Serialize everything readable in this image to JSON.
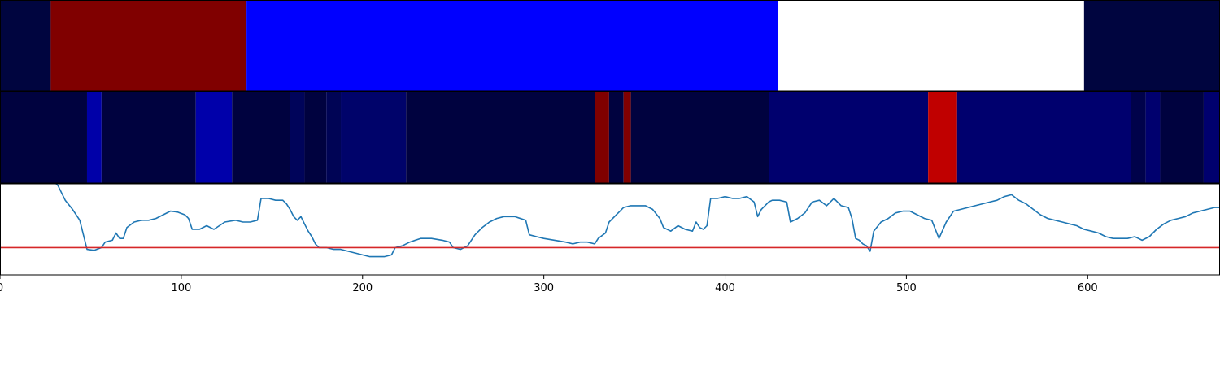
{
  "chart_data": [
    {
      "type": "heatmap",
      "panel": "top-band",
      "xlim": [
        0,
        673
      ],
      "segments": [
        {
          "start": 0,
          "end": 28,
          "color": "#00053f"
        },
        {
          "start": 28,
          "end": 136,
          "color": "#800000"
        },
        {
          "start": 136,
          "end": 429,
          "color": "#0000ff"
        },
        {
          "start": 429,
          "end": 598,
          "color": "#ffffff"
        },
        {
          "start": 598,
          "end": 673,
          "color": "#00053f"
        }
      ]
    },
    {
      "type": "heatmap",
      "panel": "middle-band",
      "xlim": [
        0,
        673
      ],
      "segments": [
        {
          "start": 0,
          "end": 48,
          "color": "#00023f"
        },
        {
          "start": 48,
          "end": 56,
          "color": "#0000a8"
        },
        {
          "start": 56,
          "end": 108,
          "color": "#00023f"
        },
        {
          "start": 108,
          "end": 128,
          "color": "#0000aa"
        },
        {
          "start": 128,
          "end": 160,
          "color": "#00023f"
        },
        {
          "start": 160,
          "end": 168,
          "color": "#00045a"
        },
        {
          "start": 168,
          "end": 180,
          "color": "#00023f"
        },
        {
          "start": 180,
          "end": 188,
          "color": "#000455"
        },
        {
          "start": 188,
          "end": 224,
          "color": "#00036a"
        },
        {
          "start": 224,
          "end": 328,
          "color": "#00023f"
        },
        {
          "start": 328,
          "end": 336,
          "color": "#800000"
        },
        {
          "start": 336,
          "end": 344,
          "color": "#00023f"
        },
        {
          "start": 344,
          "end": 348,
          "color": "#800000"
        },
        {
          "start": 348,
          "end": 424,
          "color": "#00023f"
        },
        {
          "start": 424,
          "end": 512,
          "color": "#00006e"
        },
        {
          "start": 512,
          "end": 528,
          "color": "#c00000"
        },
        {
          "start": 528,
          "end": 624,
          "color": "#00006e"
        },
        {
          "start": 624,
          "end": 632,
          "color": "#00024a"
        },
        {
          "start": 632,
          "end": 640,
          "color": "#00006e"
        },
        {
          "start": 640,
          "end": 664,
          "color": "#00023f"
        },
        {
          "start": 664,
          "end": 673,
          "color": "#00006e"
        }
      ]
    },
    {
      "type": "line",
      "panel": "bottom-line",
      "xlim": [
        0,
        673
      ],
      "ylim": [
        0,
        1
      ],
      "xticks": [
        0,
        100,
        200,
        300,
        400,
        500,
        600
      ],
      "series": [
        {
          "color": "#1f77b4",
          "points": [
            [
              0,
              1.02
            ],
            [
              30,
              1.02
            ],
            [
              32,
              0.98
            ],
            [
              36,
              0.82
            ],
            [
              40,
              0.72
            ],
            [
              44,
              0.6
            ],
            [
              48,
              0.28
            ],
            [
              52,
              0.27
            ],
            [
              56,
              0.3
            ],
            [
              58,
              0.36
            ],
            [
              62,
              0.38
            ],
            [
              64,
              0.46
            ],
            [
              66,
              0.4
            ],
            [
              68,
              0.4
            ],
            [
              70,
              0.52
            ],
            [
              74,
              0.58
            ],
            [
              78,
              0.6
            ],
            [
              82,
              0.6
            ],
            [
              86,
              0.62
            ],
            [
              90,
              0.66
            ],
            [
              94,
              0.7
            ],
            [
              98,
              0.69
            ],
            [
              102,
              0.66
            ],
            [
              104,
              0.62
            ],
            [
              106,
              0.5
            ],
            [
              110,
              0.5
            ],
            [
              114,
              0.54
            ],
            [
              118,
              0.5
            ],
            [
              124,
              0.58
            ],
            [
              130,
              0.6
            ],
            [
              134,
              0.58
            ],
            [
              138,
              0.58
            ],
            [
              142,
              0.6
            ],
            [
              144,
              0.84
            ],
            [
              148,
              0.84
            ],
            [
              152,
              0.82
            ],
            [
              156,
              0.82
            ],
            [
              158,
              0.78
            ],
            [
              160,
              0.72
            ],
            [
              162,
              0.64
            ],
            [
              164,
              0.6
            ],
            [
              166,
              0.64
            ],
            [
              168,
              0.56
            ],
            [
              170,
              0.48
            ],
            [
              172,
              0.42
            ],
            [
              174,
              0.34
            ],
            [
              176,
              0.3
            ],
            [
              180,
              0.3
            ],
            [
              184,
              0.28
            ],
            [
              188,
              0.28
            ],
            [
              192,
              0.26
            ],
            [
              196,
              0.24
            ],
            [
              200,
              0.22
            ],
            [
              204,
              0.2
            ],
            [
              208,
              0.2
            ],
            [
              212,
              0.2
            ],
            [
              216,
              0.22
            ],
            [
              218,
              0.3
            ],
            [
              222,
              0.32
            ],
            [
              226,
              0.36
            ],
            [
              232,
              0.4
            ],
            [
              238,
              0.4
            ],
            [
              244,
              0.38
            ],
            [
              248,
              0.36
            ],
            [
              250,
              0.3
            ],
            [
              254,
              0.28
            ],
            [
              258,
              0.32
            ],
            [
              262,
              0.44
            ],
            [
              266,
              0.52
            ],
            [
              270,
              0.58
            ],
            [
              274,
              0.62
            ],
            [
              278,
              0.64
            ],
            [
              284,
              0.64
            ],
            [
              290,
              0.6
            ],
            [
              292,
              0.44
            ],
            [
              296,
              0.42
            ],
            [
              300,
              0.4
            ],
            [
              306,
              0.38
            ],
            [
              312,
              0.36
            ],
            [
              316,
              0.34
            ],
            [
              320,
              0.36
            ],
            [
              324,
              0.36
            ],
            [
              328,
              0.34
            ],
            [
              330,
              0.4
            ],
            [
              334,
              0.46
            ],
            [
              336,
              0.58
            ],
            [
              340,
              0.66
            ],
            [
              344,
              0.74
            ],
            [
              348,
              0.76
            ],
            [
              352,
              0.76
            ],
            [
              356,
              0.76
            ],
            [
              360,
              0.72
            ],
            [
              364,
              0.62
            ],
            [
              366,
              0.52
            ],
            [
              370,
              0.48
            ],
            [
              374,
              0.54
            ],
            [
              378,
              0.5
            ],
            [
              382,
              0.48
            ],
            [
              384,
              0.58
            ],
            [
              386,
              0.52
            ],
            [
              388,
              0.5
            ],
            [
              390,
              0.54
            ],
            [
              392,
              0.84
            ],
            [
              396,
              0.84
            ],
            [
              400,
              0.86
            ],
            [
              404,
              0.84
            ],
            [
              408,
              0.84
            ],
            [
              412,
              0.86
            ],
            [
              416,
              0.8
            ],
            [
              418,
              0.64
            ],
            [
              420,
              0.72
            ],
            [
              422,
              0.76
            ],
            [
              424,
              0.8
            ],
            [
              426,
              0.82
            ],
            [
              430,
              0.82
            ],
            [
              434,
              0.8
            ],
            [
              436,
              0.58
            ],
            [
              440,
              0.62
            ],
            [
              444,
              0.68
            ],
            [
              448,
              0.8
            ],
            [
              452,
              0.82
            ],
            [
              456,
              0.76
            ],
            [
              460,
              0.84
            ],
            [
              464,
              0.76
            ],
            [
              468,
              0.74
            ],
            [
              470,
              0.62
            ],
            [
              472,
              0.4
            ],
            [
              474,
              0.38
            ],
            [
              476,
              0.34
            ],
            [
              478,
              0.32
            ],
            [
              480,
              0.26
            ],
            [
              482,
              0.48
            ],
            [
              486,
              0.58
            ],
            [
              490,
              0.62
            ],
            [
              494,
              0.68
            ],
            [
              498,
              0.7
            ],
            [
              502,
              0.7
            ],
            [
              506,
              0.66
            ],
            [
              510,
              0.62
            ],
            [
              514,
              0.6
            ],
            [
              518,
              0.4
            ],
            [
              522,
              0.58
            ],
            [
              526,
              0.7
            ],
            [
              530,
              0.72
            ],
            [
              534,
              0.74
            ],
            [
              538,
              0.76
            ],
            [
              542,
              0.78
            ],
            [
              546,
              0.8
            ],
            [
              550,
              0.82
            ],
            [
              554,
              0.86
            ],
            [
              558,
              0.88
            ],
            [
              562,
              0.82
            ],
            [
              566,
              0.78
            ],
            [
              570,
              0.72
            ],
            [
              574,
              0.66
            ],
            [
              578,
              0.62
            ],
            [
              582,
              0.6
            ],
            [
              586,
              0.58
            ],
            [
              590,
              0.56
            ],
            [
              594,
              0.54
            ],
            [
              598,
              0.5
            ],
            [
              602,
              0.48
            ],
            [
              606,
              0.46
            ],
            [
              610,
              0.42
            ],
            [
              614,
              0.4
            ],
            [
              618,
              0.4
            ],
            [
              622,
              0.4
            ],
            [
              626,
              0.42
            ],
            [
              630,
              0.38
            ],
            [
              634,
              0.42
            ],
            [
              638,
              0.5
            ],
            [
              642,
              0.56
            ],
            [
              646,
              0.6
            ],
            [
              650,
              0.62
            ],
            [
              654,
              0.64
            ],
            [
              658,
              0.68
            ],
            [
              662,
              0.7
            ],
            [
              666,
              0.72
            ],
            [
              670,
              0.74
            ],
            [
              673,
              0.74
            ]
          ]
        },
        {
          "color": "#d62728",
          "points": [
            [
              0,
              0.3
            ],
            [
              673,
              0.3
            ]
          ]
        }
      ]
    }
  ]
}
